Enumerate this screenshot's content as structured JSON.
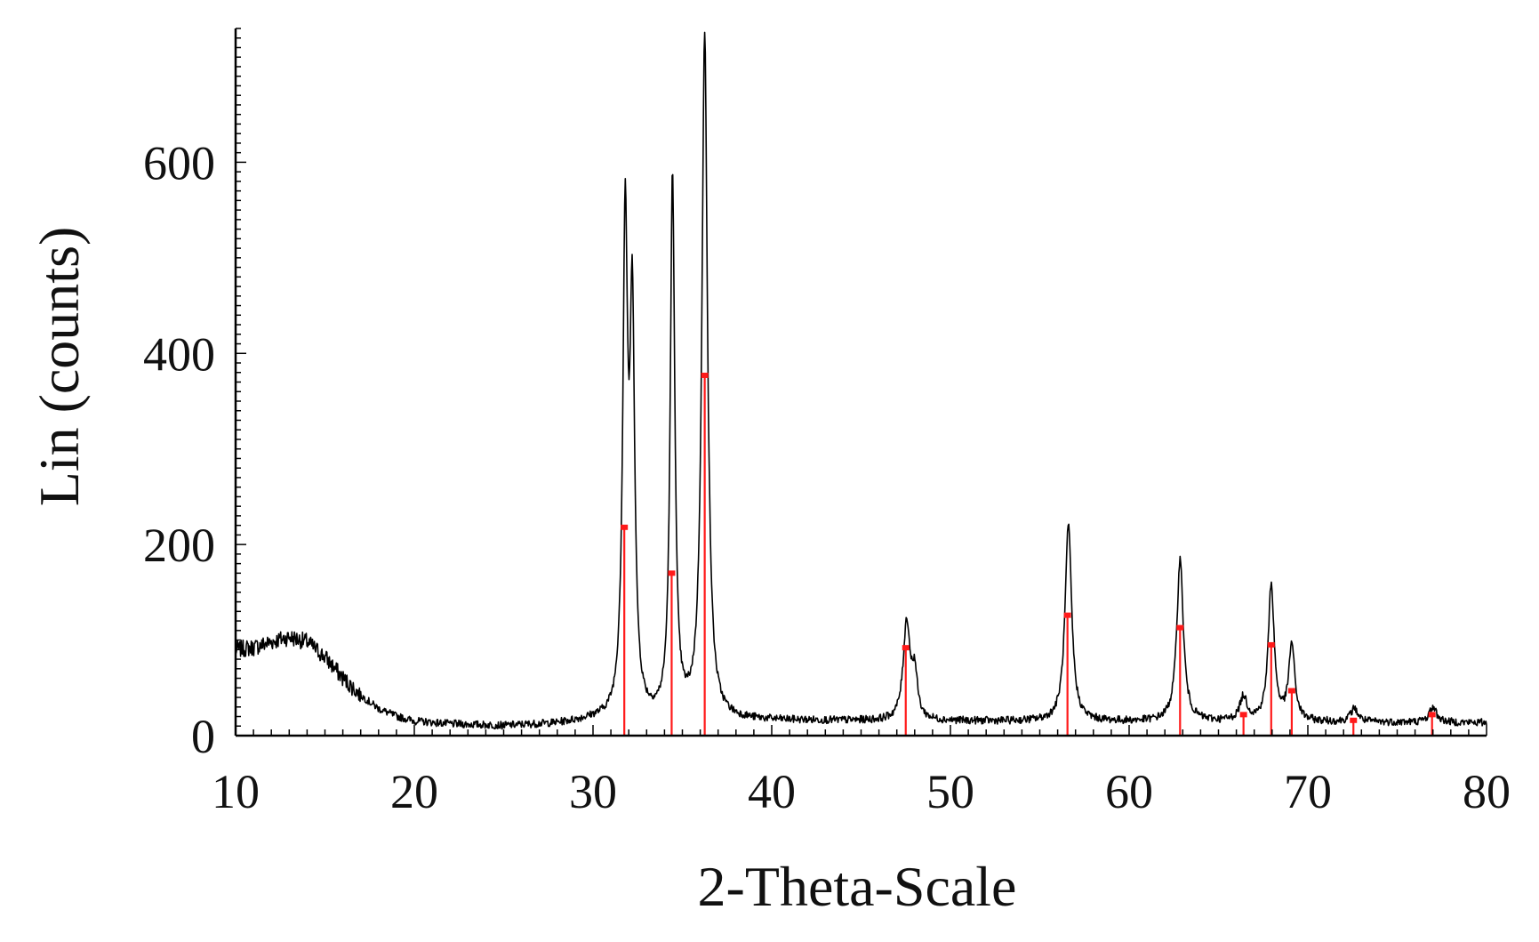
{
  "chart_data": {
    "type": "line",
    "title": "",
    "xlabel": "2-Theta-Scale",
    "ylabel": "Lin (counts)",
    "xlim": [
      10,
      80
    ],
    "ylim": [
      0,
      740
    ],
    "x_ticks": [
      10,
      20,
      30,
      40,
      50,
      60,
      70,
      80
    ],
    "y_ticks": [
      0,
      200,
      400,
      600
    ],
    "grid": false,
    "legend": "none",
    "colors": {
      "pattern": "#000000",
      "reference": "#ff1a1a"
    },
    "background_points": [
      [
        10,
        90
      ],
      [
        11,
        92
      ],
      [
        12,
        98
      ],
      [
        13,
        103
      ],
      [
        14,
        98
      ],
      [
        15,
        82
      ],
      [
        16,
        60
      ],
      [
        17,
        42
      ],
      [
        18,
        28
      ],
      [
        19,
        20
      ],
      [
        20,
        15
      ],
      [
        22,
        12
      ],
      [
        25,
        10
      ],
      [
        28,
        12
      ],
      [
        30,
        16
      ]
    ],
    "peaks": [
      {
        "x": 31.8,
        "height": 505,
        "width": 0.16
      },
      {
        "x": 32.2,
        "height": 410,
        "width": 0.16
      },
      {
        "x": 34.45,
        "height": 565,
        "width": 0.15
      },
      {
        "x": 36.25,
        "height": 715,
        "width": 0.19
      },
      {
        "x": 47.55,
        "height": 102,
        "width": 0.23
      },
      {
        "x": 48.0,
        "height": 45,
        "width": 0.18
      },
      {
        "x": 56.6,
        "height": 205,
        "width": 0.22
      },
      {
        "x": 62.85,
        "height": 170,
        "width": 0.22
      },
      {
        "x": 66.4,
        "height": 25,
        "width": 0.25
      },
      {
        "x": 67.95,
        "height": 143,
        "width": 0.2
      },
      {
        "x": 69.1,
        "height": 80,
        "width": 0.2
      },
      {
        "x": 72.6,
        "height": 14,
        "width": 0.25
      },
      {
        "x": 77.0,
        "height": 16,
        "width": 0.25
      }
    ],
    "reference_lines": [
      {
        "x": 31.75,
        "intensity": 218
      },
      {
        "x": 34.4,
        "intensity": 170
      },
      {
        "x": 36.25,
        "intensity": 377
      },
      {
        "x": 47.5,
        "intensity": 92
      },
      {
        "x": 56.55,
        "intensity": 126
      },
      {
        "x": 62.85,
        "intensity": 113
      },
      {
        "x": 66.4,
        "intensity": 22
      },
      {
        "x": 67.95,
        "intensity": 95
      },
      {
        "x": 69.1,
        "intensity": 47
      },
      {
        "x": 72.55,
        "intensity": 16
      },
      {
        "x": 76.95,
        "intensity": 22
      }
    ]
  }
}
